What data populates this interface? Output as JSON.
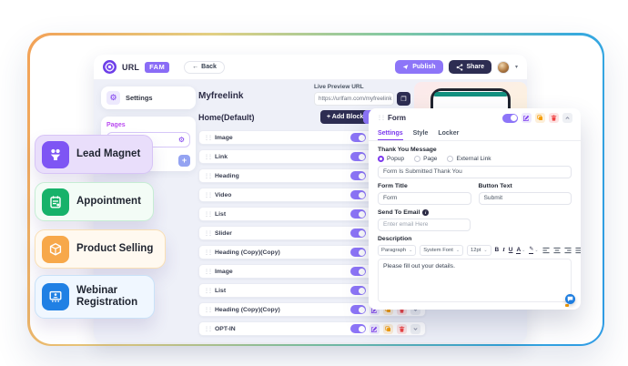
{
  "header": {
    "logo_text": "URL",
    "logo_badge": "FAM",
    "back_label": "Back",
    "publish_label": "Publish",
    "share_label": "Share"
  },
  "icons": {
    "gear": "⚙",
    "back_arrow": "←",
    "plus": "+",
    "drag": "⋮⋮",
    "caret_down": "⌄",
    "caret_tiny": "▾",
    "more": "⋯",
    "copy": "❐",
    "info": "i",
    "bold": "B",
    "italic": "I",
    "underline": "U",
    "color_text": "A",
    "pen": "✎"
  },
  "sidebar": {
    "settings_label": "Settings",
    "pages_label": "Pages",
    "page_item": "Home"
  },
  "main": {
    "site_title": "Myfreelink",
    "preview_label": "Live Preview URL",
    "preview_url": "https://urlfam.com/myfreelink",
    "page_heading": "Home(Default)",
    "add_block_label": "+ Add Block",
    "blocks": [
      "Image",
      "Link",
      "Heading",
      "Video",
      "List",
      "Slider",
      "Heading (Copy)(Copy)",
      "Image",
      "List",
      "Heading (Copy)(Copy)",
      "OPT-IN"
    ]
  },
  "form_panel": {
    "title": "Form",
    "tabs": [
      "Settings",
      "Style",
      "Locker"
    ],
    "active_tab": "Settings",
    "thank_you_label": "Thank You Message",
    "thank_you_options": [
      "Popup",
      "Page",
      "External Link"
    ],
    "thank_you_selected": "Popup",
    "thank_you_select_value": "Form Is Submitted Thank You",
    "form_title_label": "Form Title",
    "form_title_value": "Form",
    "button_text_label": "Button Text",
    "button_text_value": "Submit",
    "send_to_email_label": "Send To Email",
    "email_placeholder": "Enter email Here",
    "description_label": "Description",
    "toolbar": {
      "paragraph": "Paragraph",
      "font": "System Font",
      "size": "12pt"
    },
    "description_text": "Please fill out your details."
  },
  "feature_cards": [
    {
      "label": "Lead Magnet",
      "icon": "lead",
      "bg": "#E9DEFB",
      "border": "#D7C4F6",
      "icon_bg": "#7E55F4",
      "wrap": false
    },
    {
      "label": "Appointment",
      "icon": "appointment",
      "bg": "#F3FCF6",
      "border": "#C6EDD4",
      "icon_bg": "#17B26A",
      "wrap": false
    },
    {
      "label": "Product Selling",
      "icon": "product",
      "bg": "#FFF9F0",
      "border": "#F9DFB4",
      "icon_bg": "#F7A84A",
      "wrap": false
    },
    {
      "label": "Webinar Registration",
      "icon": "webinar",
      "bg": "#F0F7FF",
      "border": "#C9E2F8",
      "icon_bg": "#2080E4",
      "wrap": true
    }
  ],
  "colors": {
    "accent_purple": "#7C3AED",
    "toggle_purple": "#8D75F8",
    "navy": "#2D2D52",
    "frame_gradient": [
      "#F3A156",
      "#E2CF83",
      "#7FC8A4",
      "#36A9DF"
    ],
    "app_bg": "#EEF0F8",
    "pages_label": "#B94AF0",
    "phone_strip": "#12907F",
    "chat_blue": "#1D7DE0"
  }
}
